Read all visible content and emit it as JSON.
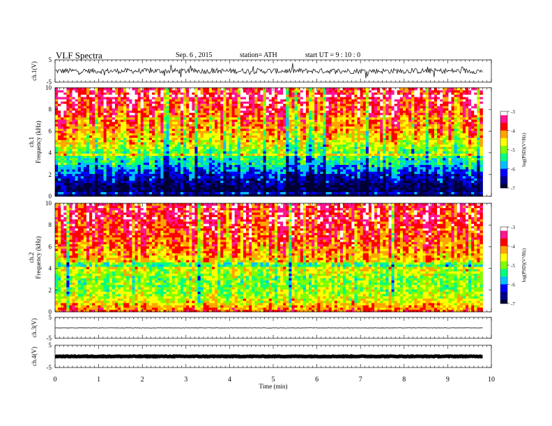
{
  "header": {
    "title": "VLF  Spectra",
    "date": "Sep. 6  , 2015",
    "station": "station= ATH",
    "start": "start  UT =   9  : 10 : 0"
  },
  "chart_data": [
    {
      "type": "line",
      "name": "ch1-waveform",
      "ylabel": "ch.1(V)",
      "ylim": [
        -5,
        5
      ],
      "y_ticks": [
        "5",
        "-5"
      ],
      "baseline": 0,
      "amplitude": 1.2
    },
    {
      "type": "heatmap",
      "name": "ch1-spectrogram",
      "ylabel": "ch.1\nFrequency  (kHz)",
      "ylim": [
        0,
        10
      ],
      "y_ticks": [
        "0",
        "2",
        "4",
        "6",
        "8",
        "10"
      ],
      "colorbar": {
        "label": "log(PSD)(V²/Hz)",
        "range": [
          -7,
          -3
        ],
        "ticks": [
          "-3",
          "-4",
          "-5",
          "-6",
          "-7"
        ]
      },
      "profile": [
        {
          "f": 0,
          "level": -7
        },
        {
          "f": 1,
          "level": -6.8
        },
        {
          "f": 2,
          "level": -6.2
        },
        {
          "f": 3,
          "level": -5.6
        },
        {
          "f": 4,
          "level": -5.1
        },
        {
          "f": 5,
          "level": -4.6
        },
        {
          "f": 6,
          "level": -4.2
        },
        {
          "f": 8,
          "level": -3.7
        },
        {
          "f": 10,
          "level": -3.5
        }
      ]
    },
    {
      "type": "heatmap",
      "name": "ch2-spectrogram",
      "ylabel": "ch.2\nFrequency  (kHz)",
      "ylim": [
        0,
        10
      ],
      "y_ticks": [
        "0",
        "2",
        "4",
        "6",
        "8",
        "10"
      ],
      "colorbar": {
        "label": "log(PSD)(V²/Hz)",
        "range": [
          -7,
          -3
        ],
        "ticks": [
          "-3",
          "-4",
          "-5",
          "-6",
          "-7"
        ]
      },
      "profile": [
        {
          "f": 0,
          "level": -3.8
        },
        {
          "f": 1,
          "level": -4.6
        },
        {
          "f": 2,
          "level": -4.9
        },
        {
          "f": 3,
          "level": -5.0
        },
        {
          "f": 4,
          "level": -4.6
        },
        {
          "f": 5,
          "level": -4.3
        },
        {
          "f": 6,
          "level": -4.0
        },
        {
          "f": 8,
          "level": -3.7
        },
        {
          "f": 10,
          "level": -3.5
        }
      ]
    },
    {
      "type": "line",
      "name": "ch3-waveform",
      "ylabel": "ch.3(V)",
      "ylim": [
        -5,
        5
      ],
      "y_ticks": [
        "5",
        "-5"
      ],
      "baseline": 0,
      "amplitude": 0.08
    },
    {
      "type": "line",
      "name": "ch4-waveform",
      "ylabel": "ch.4(V)",
      "ylim": [
        -5,
        5
      ],
      "y_ticks": [
        "5",
        "-5"
      ],
      "baseline": 0,
      "amplitude": 0.15
    }
  ],
  "x_axis": {
    "label": "Time  (min)",
    "range": [
      0,
      10
    ],
    "data_end": 9.8,
    "ticks": [
      "0",
      "1",
      "2",
      "3",
      "4",
      "5",
      "6",
      "7",
      "8",
      "9",
      "10"
    ]
  },
  "colors": {
    "colormap": [
      "#000033",
      "#00008b",
      "#0000ff",
      "#00bfff",
      "#00ff7f",
      "#7fff00",
      "#ffff00",
      "#ffa500",
      "#ff0000",
      "#ff1493",
      "#ffffff"
    ]
  }
}
